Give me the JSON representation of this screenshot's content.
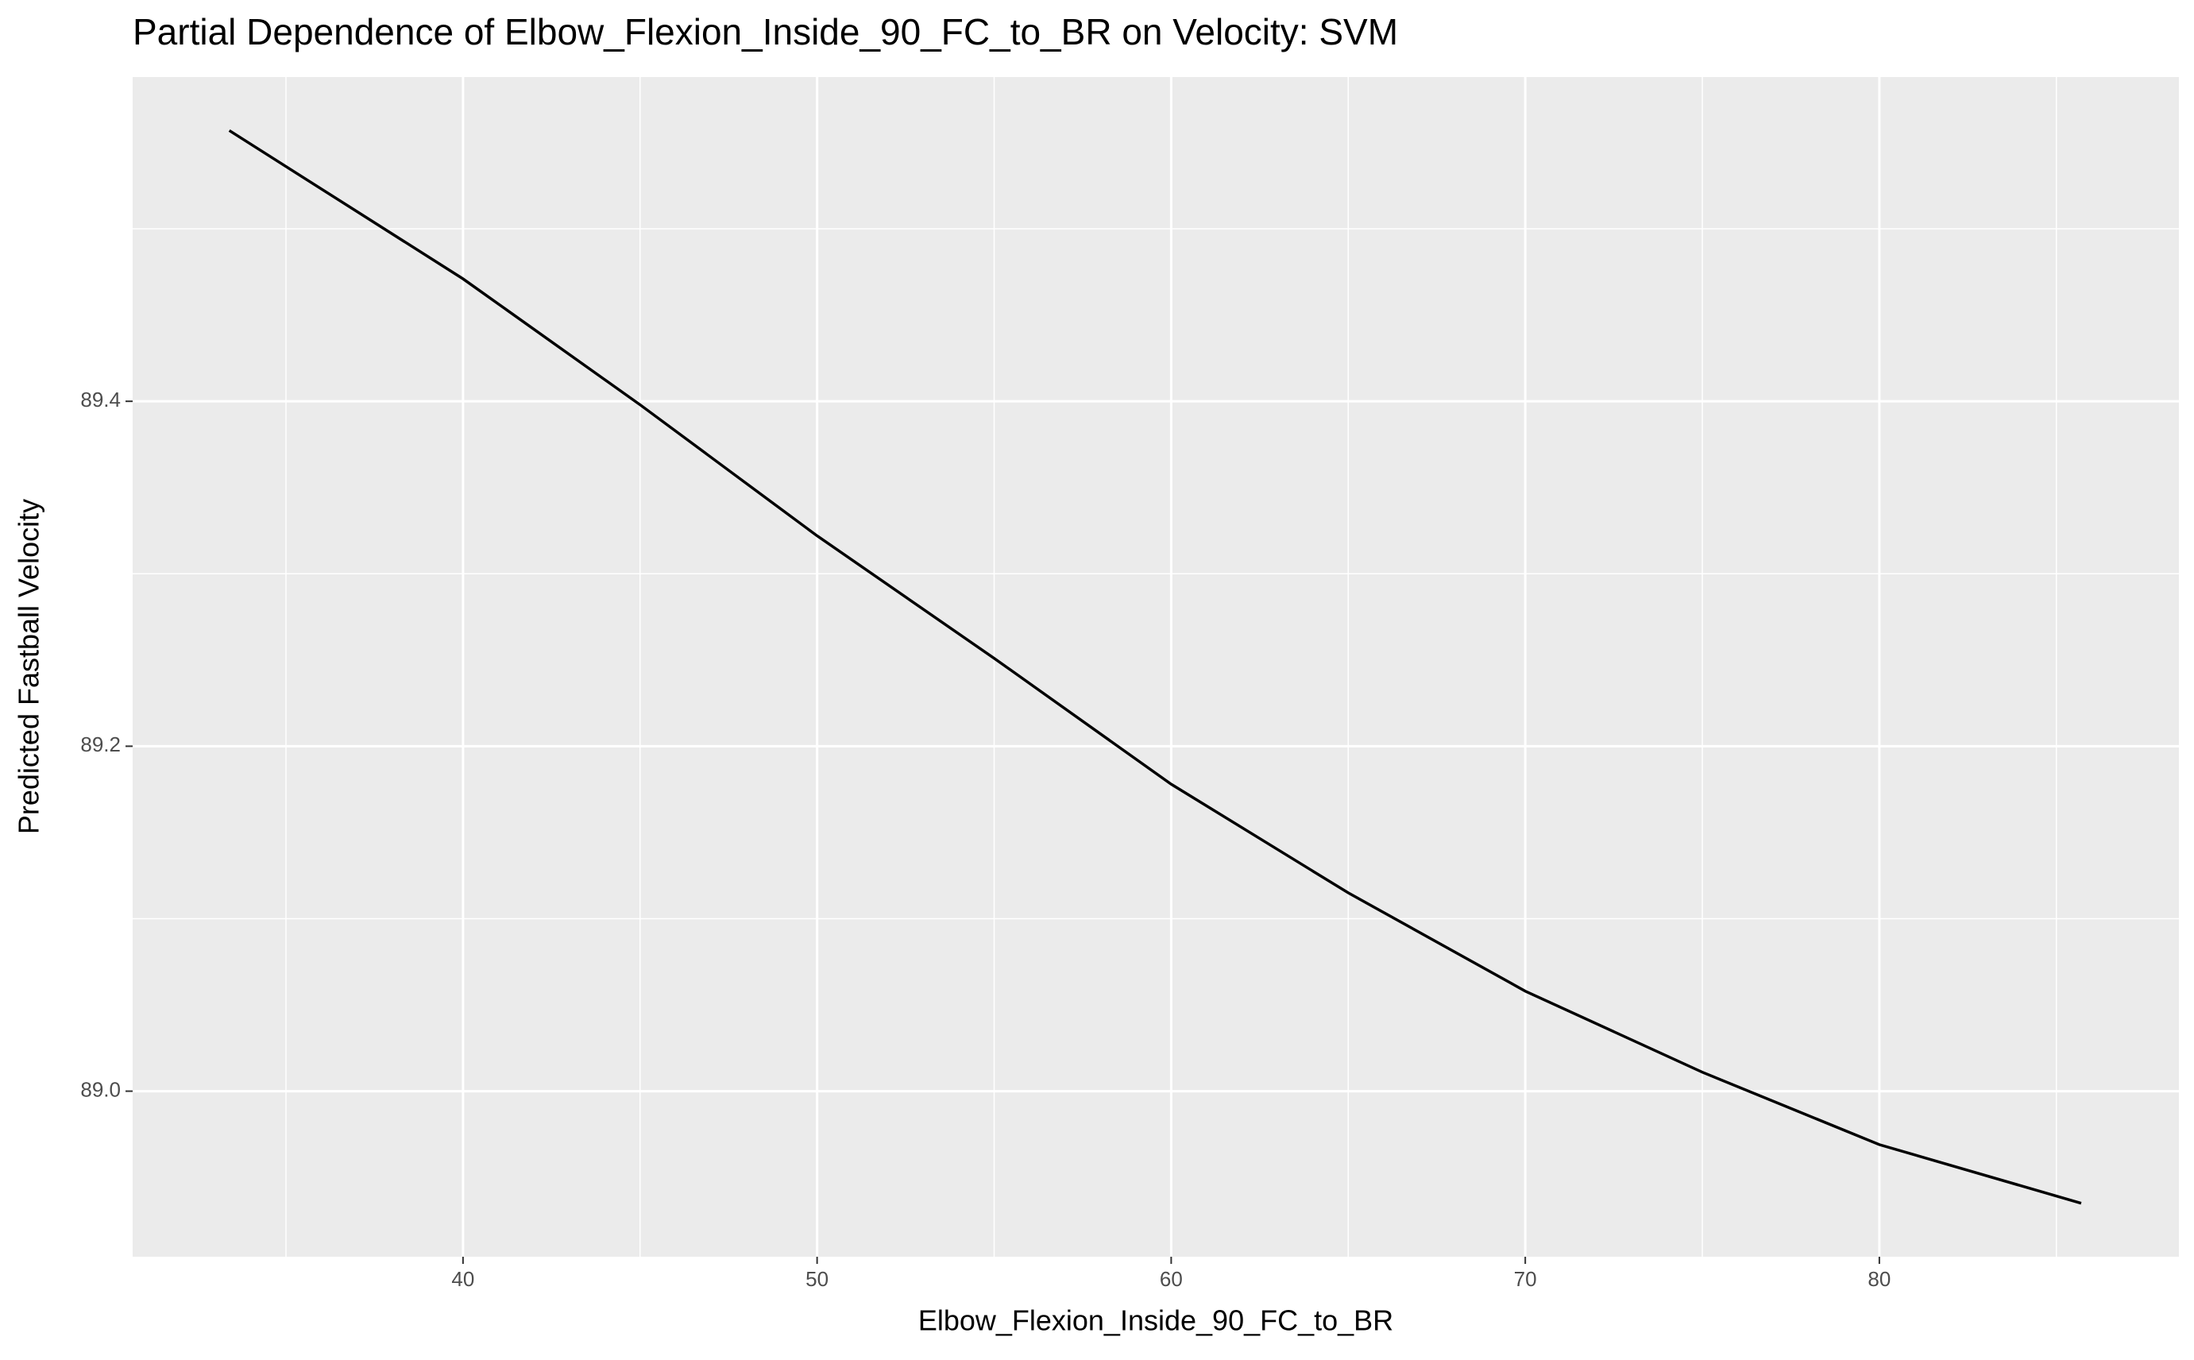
{
  "chart_data": {
    "type": "line",
    "title": "Partial Dependence of Elbow_Flexion_Inside_90_FC_to_BR on Velocity: SVM",
    "x_label": "Elbow_Flexion_Inside_90_FC_to_BR",
    "y_label": "Predicted Fastball Velocity",
    "x": [
      33.4,
      40,
      45,
      50,
      55,
      60,
      65,
      70,
      75,
      80,
      85.7
    ],
    "series": [
      {
        "color": "#000000",
        "values": [
          89.557,
          89.471,
          89.398,
          89.322,
          89.251,
          89.178,
          89.115,
          89.058,
          89.011,
          88.969,
          88.935
        ]
      }
    ],
    "xlim": [
      30.67,
      88.46
    ],
    "ylim": [
      88.904,
      89.588
    ],
    "xticks": [
      40,
      50,
      60,
      70,
      80
    ],
    "yticks": [
      {
        "value": 89.0,
        "label": "89.0"
      },
      {
        "value": 89.2,
        "label": "89.2"
      },
      {
        "value": 89.4,
        "label": "89.4"
      }
    ],
    "grid": true
  }
}
